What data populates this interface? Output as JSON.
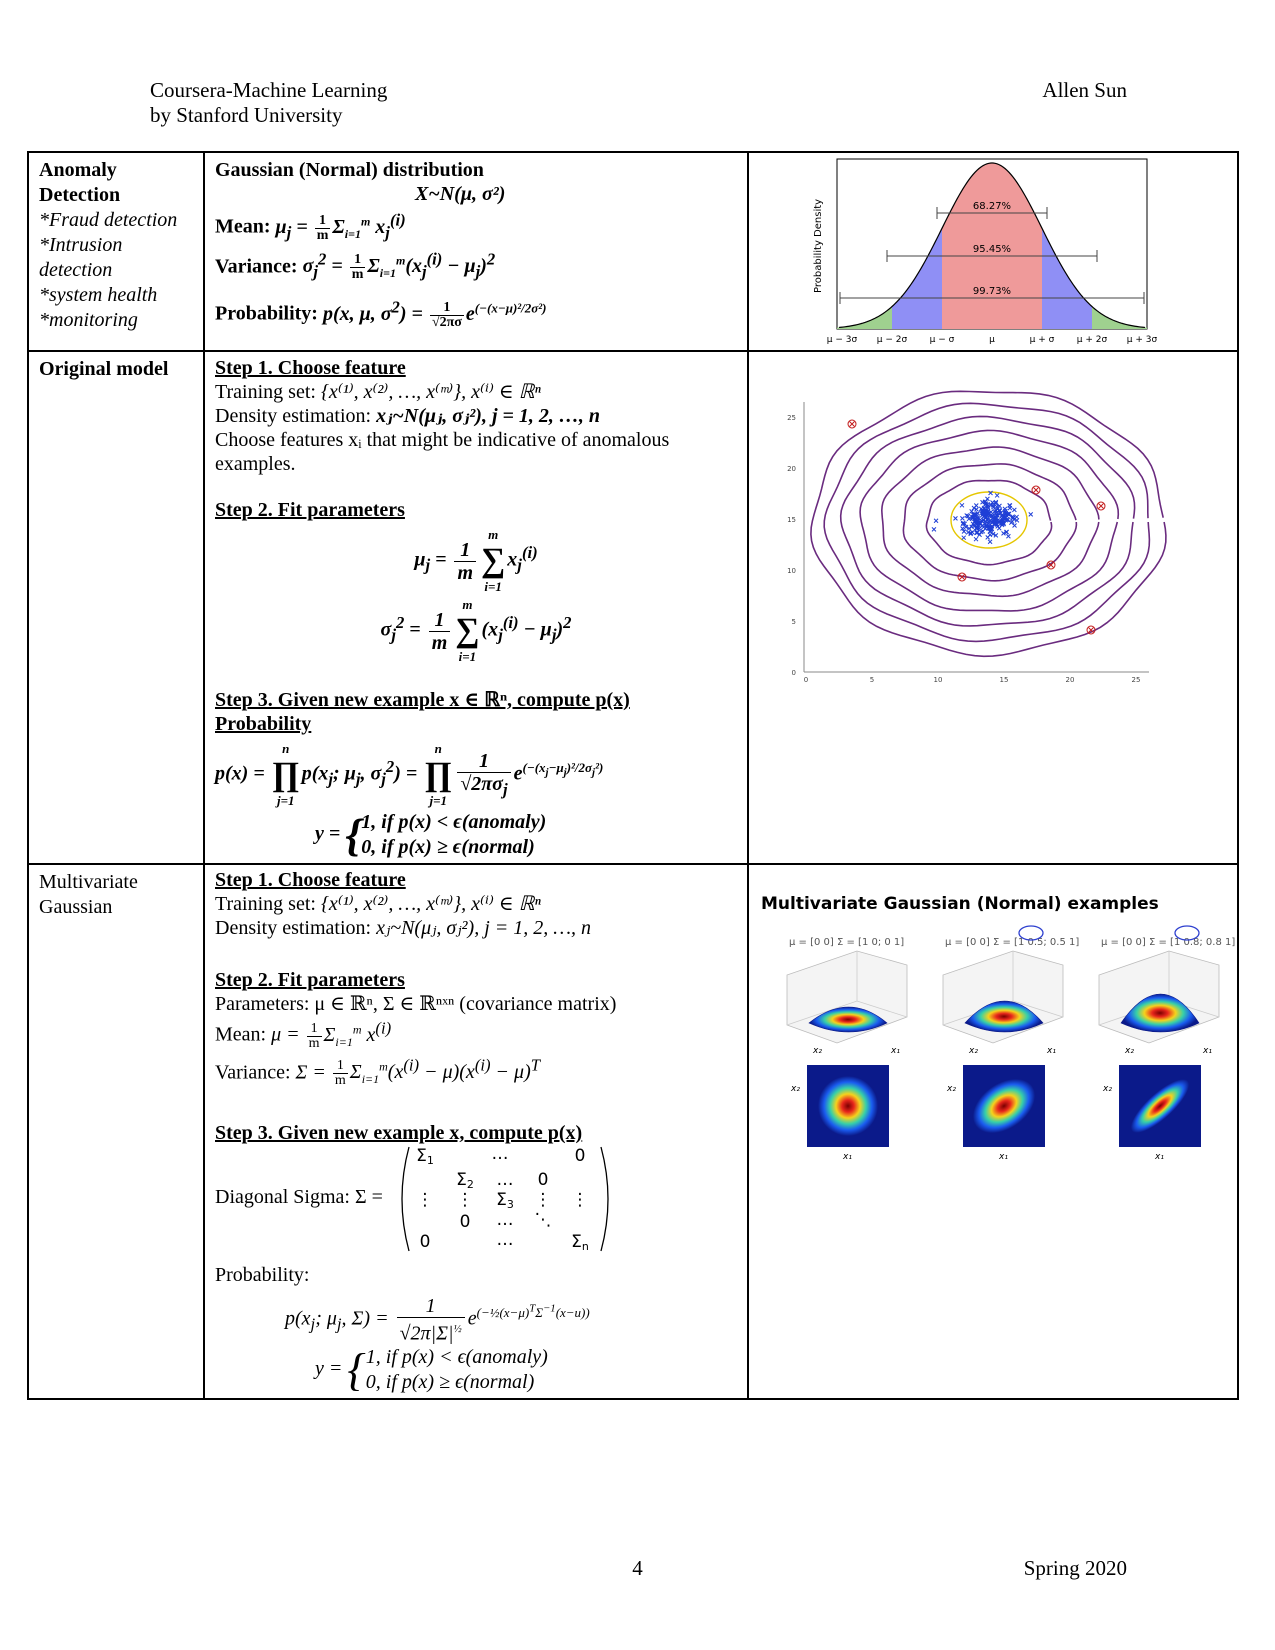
{
  "header": {
    "course": "Coursera-Machine Learning",
    "institution": "by Stanford University",
    "author": "Allen Sun"
  },
  "footer": {
    "page": "4",
    "term": "Spring 2020"
  },
  "rows": {
    "anomaly": {
      "title_1": "Anomaly",
      "title_2": "Detection",
      "items": [
        "*Fraud detection",
        "*Intrusion",
        "detection",
        "*system health",
        "*monitoring"
      ],
      "heading": "Gaussian (Normal) distribution",
      "dist": "X~N(μ, σ²)",
      "mean_label": "Mean: ",
      "var_label": "Variance: ",
      "prob_label": "Probability: "
    },
    "original": {
      "title": "Original model",
      "step1": "Step 1. Choose feature",
      "train_label": "Training set: ",
      "train_set": "{x⁽¹⁾, x⁽²⁾, …, x⁽ᵐ⁾}, x⁽ⁱ⁾ ∈ ℝⁿ",
      "density_label": "Density estimation: ",
      "density": "xⱼ~N(μⱼ, σⱼ²), j = 1, 2, …, n",
      "choose_text": "Choose features xᵢ that might be indicative of anomalous examples.",
      "step2": "Step 2. Fit parameters",
      "step3": "Step 3. Given new example x ∈ ℝⁿ, compute p(x)",
      "prob_heading": "Probability",
      "case1": "1,  if p(x) < ϵ(anomaly)",
      "case2": "0,  if p(x) ≥ ϵ(normal)"
    },
    "multivariate": {
      "title_1": "Multivariate",
      "title_2": "Gaussian",
      "step1": "Step 1. Choose feature",
      "train_label": "Training set: ",
      "train_set": "{x⁽¹⁾, x⁽²⁾, …, x⁽ᵐ⁾}, x⁽ⁱ⁾ ∈ ℝⁿ",
      "density_label": "Density estimation: ",
      "density": "xⱼ~N(μⱼ, σⱼ²), j = 1, 2, …, n",
      "step2": "Step 2. Fit parameters",
      "params": "Parameters: μ ∈ ℝⁿ, Σ ∈ ℝⁿˣⁿ (covariance matrix)",
      "mean_label": "Mean: ",
      "var_label": "Variance: ",
      "step3": "Step 3. Given new example x, compute p(x)",
      "diag_label": "Diagonal Sigma:  Σ = ",
      "prob_label": "Probability:",
      "case1": "1,  if p(x) < ϵ(anomaly)",
      "case2": "0,  if p(x) ≥ ϵ(normal)"
    }
  },
  "figures": {
    "normal": {
      "ylabel": "Probability Density",
      "pct1": "68.27%",
      "pct2": "95.45%",
      "pct3": "99.73%",
      "ticks": [
        "μ − 3σ",
        "μ − 2σ",
        "μ − σ",
        "μ",
        "μ + σ",
        "μ + 2σ",
        "μ + 3σ"
      ]
    },
    "contour": {
      "yticks": [
        "0",
        "5",
        "10",
        "15",
        "20",
        "25"
      ],
      "xticks": [
        "0",
        "5",
        "10",
        "15",
        "20",
        "25"
      ]
    },
    "mvg": {
      "title": "Multivariate Gaussian (Normal) examples",
      "sigmas": [
        [
          "1",
          "0",
          "0",
          "1"
        ],
        [
          "1",
          "0.5",
          "0.5",
          "1"
        ],
        [
          "1",
          "0.8",
          "0.8",
          "1"
        ]
      ],
      "x1": "x₁",
      "x2": "x₂"
    }
  }
}
